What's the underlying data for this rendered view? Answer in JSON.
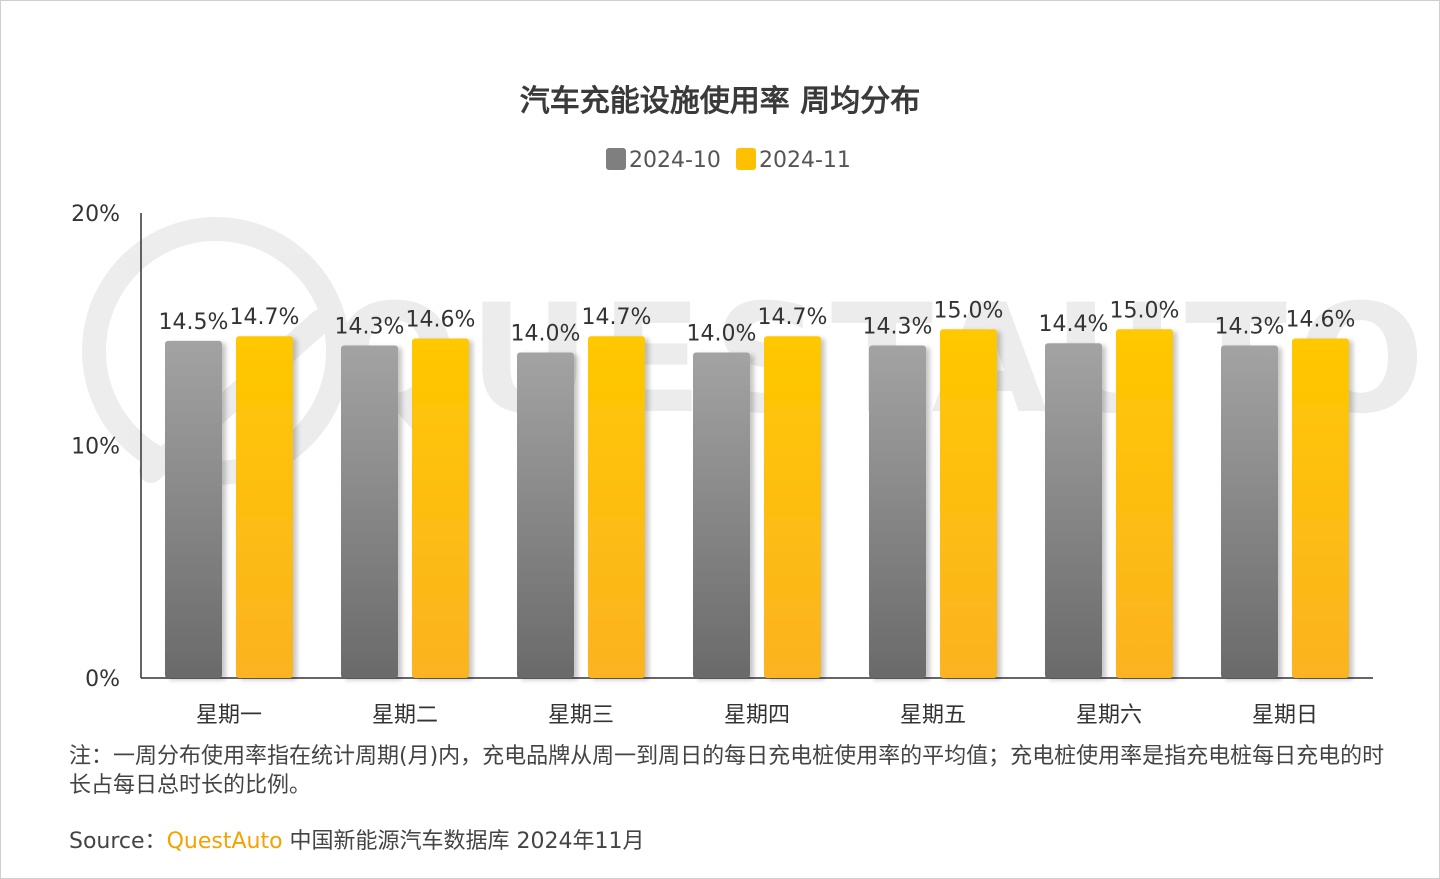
{
  "chart_data": {
    "type": "bar",
    "title": "汽车充能设施使用率 周均分布",
    "categories": [
      "星期一",
      "星期二",
      "星期三",
      "星期四",
      "星期五",
      "星期六",
      "星期日"
    ],
    "series": [
      {
        "name": "2024-10",
        "values": [
          14.5,
          14.3,
          14.0,
          14.0,
          14.3,
          14.4,
          14.3
        ],
        "labels": [
          "14.5%",
          "14.3%",
          "14.0%",
          "14.0%",
          "14.3%",
          "14.4%",
          "14.3%"
        ],
        "color": "#8c8c8c"
      },
      {
        "name": "2024-11",
        "values": [
          14.7,
          14.6,
          14.7,
          14.7,
          15.0,
          15.0,
          14.6
        ],
        "labels": [
          "14.7%",
          "14.6%",
          "14.7%",
          "14.7%",
          "15.0%",
          "15.0%",
          "14.6%"
        ],
        "color": "#ffc000"
      }
    ],
    "y_ticks": [
      {
        "value": 0,
        "label": "0%"
      },
      {
        "value": 10,
        "label": "10%"
      },
      {
        "value": 20,
        "label": "20%"
      }
    ],
    "ylim": [
      0,
      20
    ],
    "grid": false,
    "legend_position": "top-center",
    "watermark": "QUESTAUTO"
  },
  "footer": {
    "note": "注：一周分布使用率指在统计周期(月)内，充电品牌从周一到周日的每日充电桩使用率的平均值；充电桩使用率是指充电桩每日充电的时长占每日总时长的比例。",
    "source_label": "Source：",
    "source_brand": "QuestAuto",
    "source_text": " 中国新能源汽车数据库 2024年11月"
  }
}
